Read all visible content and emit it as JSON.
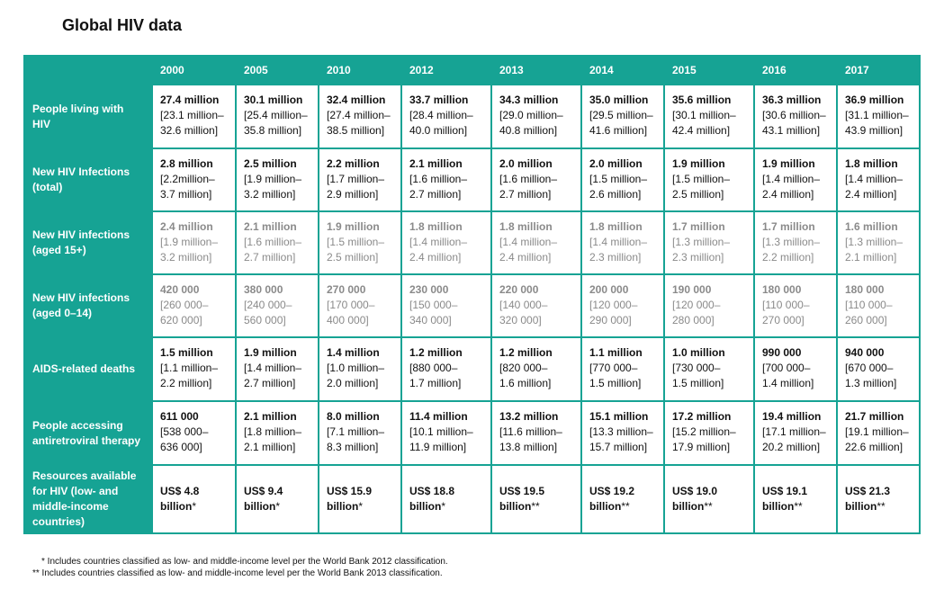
{
  "title": "Global HIV data",
  "table": {
    "columns": [
      "2000",
      "2005",
      "2010",
      "2012",
      "2013",
      "2014",
      "2015",
      "2016",
      "2017"
    ],
    "rows": [
      {
        "label": "People living with HIV",
        "cells": [
          [
            "27.4 million",
            "[23.1 million–",
            "32.6 million]"
          ],
          [
            "30.1 million",
            "[25.4 million–",
            "35.8 million]"
          ],
          [
            "32.4 million",
            "[27.4 million–",
            "38.5 million]"
          ],
          [
            "33.7 million",
            "[28.4 million–",
            "40.0 million]"
          ],
          [
            "34.3 million",
            "[29.0 million–",
            "40.8 million]"
          ],
          [
            "35.0 million",
            "[29.5 million–",
            "41.6 million]"
          ],
          [
            "35.6 million",
            "[30.1 million–",
            "42.4 million]"
          ],
          [
            "36.3 million",
            "[30.6 million–",
            "43.1 million]"
          ],
          [
            "36.9 million",
            "[31.1 million–",
            "43.9 million]"
          ]
        ]
      },
      {
        "label": "New HIV Infections (total)",
        "cells": [
          [
            "2.8 million",
            "[2.2million–",
            "3.7 million]"
          ],
          [
            "2.5 million",
            "[1.9 million–",
            "3.2 million]"
          ],
          [
            "2.2 million",
            "[1.7 million–",
            "2.9 million]"
          ],
          [
            "2.1 million",
            "[1.6 million–",
            "2.7 million]"
          ],
          [
            "2.0 million",
            "[1.6 million–",
            "2.7 million]"
          ],
          [
            "2.0 million",
            "[1.5 million–",
            "2.6 million]"
          ],
          [
            "1.9 million",
            "[1.5 million–",
            "2.5 million]"
          ],
          [
            "1.9 million",
            "[1.4 million–",
            "2.4 million]"
          ],
          [
            "1.8 million",
            "[1.4 million–",
            "2.4 million]"
          ]
        ]
      },
      {
        "label": "New HIV infections (aged 15+)",
        "color": "#8a8a8a",
        "cells": [
          [
            "2.4 million",
            "[1.9 million–",
            "3.2 million]"
          ],
          [
            "2.1 million",
            "[1.6 million–",
            "2.7 million]"
          ],
          [
            "1.9 million",
            "[1.5 million–",
            "2.5 million]"
          ],
          [
            "1.8 million",
            "[1.4 million–",
            "2.4 million]"
          ],
          [
            "1.8 million",
            "[1.4 million–",
            "2.4 million]"
          ],
          [
            "1.8 million",
            "[1.4 million–",
            "2.3 million]"
          ],
          [
            "1.7 million",
            "[1.3 million–",
            "2.3 million]"
          ],
          [
            "1.7 million",
            "[1.3 million–",
            "2.2 million]"
          ],
          [
            "1.6 million",
            "[1.3 million–",
            "2.1 million]"
          ]
        ]
      },
      {
        "label": "New HIV infections (aged 0–14)",
        "color": "#8a8a8a",
        "cells": [
          [
            "420 000",
            "[260 000–",
            "620 000]"
          ],
          [
            "380 000",
            "[240 000–",
            "560 000]"
          ],
          [
            "270 000",
            "[170 000–",
            "400 000]"
          ],
          [
            "230 000",
            "[150 000–",
            "340 000]"
          ],
          [
            "220 000",
            "[140 000–",
            "320 000]"
          ],
          [
            "200 000",
            "[120 000–",
            "290 000]"
          ],
          [
            "190 000",
            "[120 000–",
            "280 000]"
          ],
          [
            "180 000",
            "[110 000–",
            "270 000]"
          ],
          [
            "180 000",
            "[110 000–",
            "260 000]"
          ]
        ]
      },
      {
        "label": "AIDS-related deaths",
        "cells": [
          [
            "1.5 million",
            "[1.1 million–",
            "2.2 million]"
          ],
          [
            "1.9 million",
            "[1.4 million–",
            "2.7 million]"
          ],
          [
            "1.4 million",
            "[1.0 million–",
            "2.0 million]"
          ],
          [
            "1.2 million",
            "[880 000–",
            "1.7 million]"
          ],
          [
            "1.2 million",
            "[820 000–",
            "1.6 million]"
          ],
          [
            "1.1 million",
            "[770 000–",
            "1.5 million]"
          ],
          [
            "1.0 million",
            "[730 000–",
            "1.5 million]"
          ],
          [
            "990 000",
            "[700 000–",
            "1.4 million]"
          ],
          [
            "940 000",
            "[670 000–",
            "1.3 million]"
          ]
        ]
      },
      {
        "label": "People accessing antiretroviral therapy",
        "cells": [
          [
            "611 000",
            "[538 000–",
            "636 000]"
          ],
          [
            "2.1 million",
            "[1.8 million–",
            "2.1 million]"
          ],
          [
            "8.0 million",
            "[7.1 million–",
            "8.3 million]"
          ],
          [
            "11.4 million",
            "[10.1 million–",
            "11.9 million]"
          ],
          [
            "13.2 million",
            "[11.6 million–",
            "13.8 million]"
          ],
          [
            "15.1 million",
            "[13.3 million–",
            "15.7 million]"
          ],
          [
            "17.2 million",
            "[15.2 million–",
            "17.9 million]"
          ],
          [
            "19.4 million",
            "[17.1 million–",
            "20.2 million]"
          ],
          [
            "21.7 million",
            "[19.1 million–",
            "22.6 million]"
          ]
        ]
      },
      {
        "label": "Resources available for HIV (low- and middle-income countries)",
        "cells": [
          [
            "US$ 4.8 billion",
            "*"
          ],
          [
            "US$ 9.4 billion",
            "*"
          ],
          [
            "US$ 15.9 billion",
            "*"
          ],
          [
            "US$ 18.8 billion",
            "*"
          ],
          [
            "US$ 19.5 billion",
            "**"
          ],
          [
            "US$ 19.2 billion",
            "**"
          ],
          [
            "US$ 19.0 billion",
            "**"
          ],
          [
            "US$ 19.1 billion",
            "**"
          ],
          [
            "US$ 21.3 billion",
            "**"
          ]
        ]
      }
    ]
  },
  "footnotes": [
    "* Includes countries classified as low- and middle-income level per the World Bank 2012 classification.",
    "** Includes countries classified as low- and middle-income level per the World Bank 2013 classification."
  ]
}
